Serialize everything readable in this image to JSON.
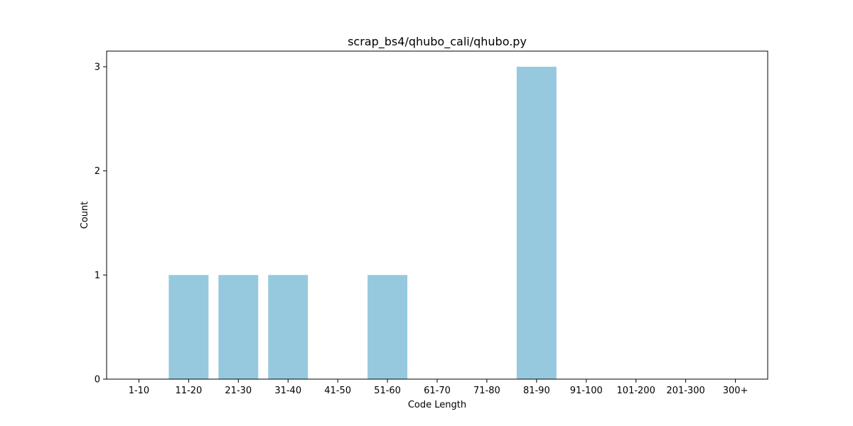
{
  "chart_data": {
    "type": "bar",
    "title": "scrap_bs4/qhubo_cali/qhubo.py",
    "xlabel": "Code Length",
    "ylabel": "Count",
    "categories": [
      "1-10",
      "11-20",
      "21-30",
      "31-40",
      "41-50",
      "51-60",
      "61-70",
      "71-80",
      "81-90",
      "91-100",
      "101-200",
      "201-300",
      "300+"
    ],
    "values": [
      0,
      1,
      1,
      1,
      0,
      1,
      0,
      0,
      3,
      0,
      0,
      0,
      0
    ],
    "ylim": [
      0,
      3.15
    ],
    "yticks": [
      0,
      1,
      2,
      3
    ],
    "bar_color": "#96c9de",
    "grid": false,
    "legend": "none"
  }
}
